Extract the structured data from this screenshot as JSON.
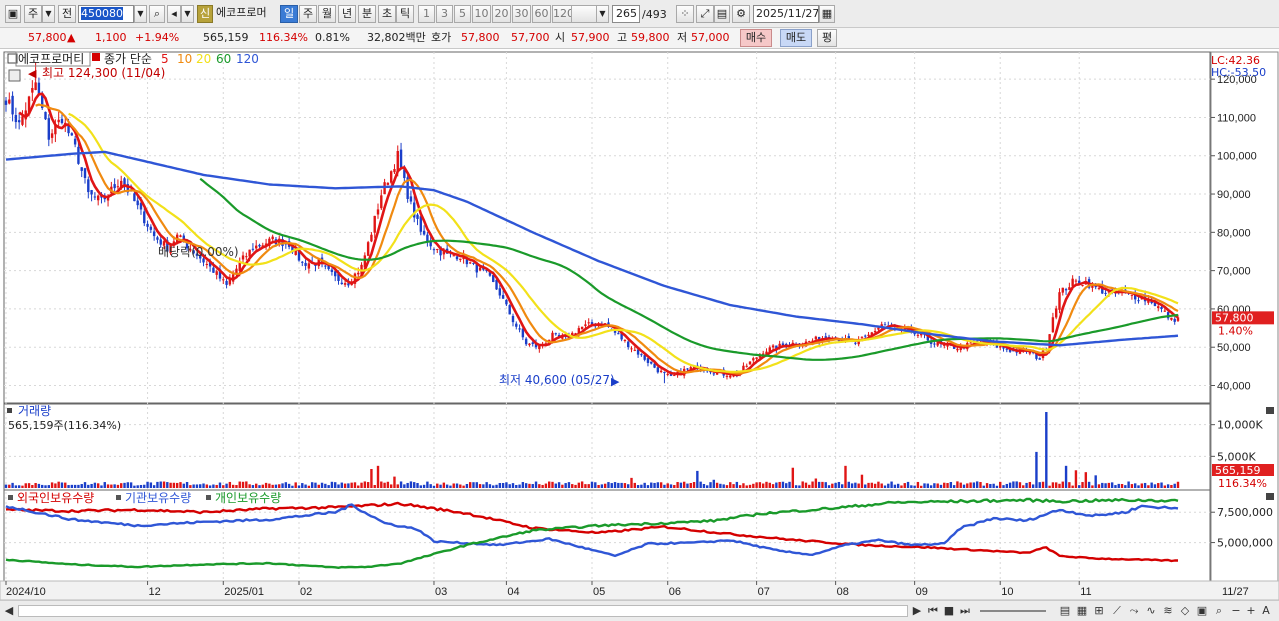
{
  "toolbar": {
    "period_main": "주",
    "jeon": "전",
    "code": "450080",
    "shin": "신",
    "stock_name": "에코프로머",
    "periods": [
      "일",
      "주",
      "월",
      "년",
      "분",
      "초",
      "틱"
    ],
    "active_period": "일",
    "intervals": [
      "1",
      "3",
      "5",
      "10",
      "20",
      "30",
      "60",
      "120"
    ],
    "count_value": "265",
    "count_total": "/493",
    "date": "2025/11/27"
  },
  "quote": {
    "price": "57,800",
    "change_arrow": "▲",
    "change": "1,100",
    "change_pct": "+1.94%",
    "volume": "565,159",
    "volume_ratio": "116.34%",
    "turnover": "0.81%",
    "amount": "32,802백만",
    "bid_label": "호가",
    "bid": "57,800",
    "ask": "57,700",
    "open_label": "시",
    "open": "57,900",
    "high_label": "고",
    "high": "59,800",
    "low_label": "저",
    "low": "57,000",
    "buy_btn": "매수",
    "sell_btn": "매도",
    "eval_btn": "평"
  },
  "price_panel": {
    "name_label": "에코프로머티",
    "ma_label": "종가 단순",
    "ma_periods": [
      "5",
      "10",
      "20",
      "60",
      "120"
    ],
    "ma_colors": [
      "#e01515",
      "#f08a10",
      "#f2e11a",
      "#1a9a2a",
      "#2f56d6"
    ],
    "high_marker": "최고 124,300 (11/04)",
    "low_marker": "최저 40,600 (05/27)",
    "lc_label": "LC:42.36",
    "hc_label": "HC:-53.50",
    "price_tag": "57,800",
    "pct_tag": "1.40%",
    "overlay_text": "배당락(0.00%)",
    "y_ticks": [
      "120,000",
      "110,000",
      "100,000",
      "90,000",
      "80,000",
      "70,000",
      "60,000",
      "50,000",
      "40,000"
    ]
  },
  "volume_panel": {
    "title": "거래량",
    "value_text": "565,159주(116.34%)",
    "y_ticks": [
      "10,000K",
      "5,000K"
    ],
    "tag_value": "565,159",
    "tag_pct": "116.34%"
  },
  "holding_panel": {
    "labels": [
      "외국인보유수량",
      "기관보유수량",
      "개인보유수량"
    ],
    "label_colors": [
      "#d40000",
      "#2f56d6",
      "#1a9a2a"
    ],
    "y_ticks": [
      "7,500,000",
      "5,000,000"
    ]
  },
  "x_axis": {
    "labels": [
      "2024/10",
      "12",
      "2025/01",
      "02",
      "03",
      "04",
      "05",
      "06",
      "07",
      "08",
      "09",
      "10",
      "11"
    ],
    "last_date": "11/27"
  },
  "chart_data": {
    "type": "line",
    "x_start": "2024-10-02",
    "x_end": "2025-11-27",
    "price_ylim": [
      37000,
      125000
    ],
    "price_anchors": [
      [
        0,
        115000
      ],
      [
        4,
        108000
      ],
      [
        9,
        119000
      ],
      [
        13,
        105000
      ],
      [
        17,
        110000
      ],
      [
        21,
        102000
      ],
      [
        25,
        90000
      ],
      [
        29,
        88000
      ],
      [
        35,
        94000
      ],
      [
        41,
        85000
      ],
      [
        45,
        79000
      ],
      [
        49,
        76000
      ],
      [
        52,
        79000
      ],
      [
        57,
        75000
      ],
      [
        63,
        70000
      ],
      [
        67,
        66000
      ],
      [
        71,
        72000
      ],
      [
        75,
        76000
      ],
      [
        81,
        78000
      ],
      [
        86,
        77000
      ],
      [
        90,
        72000
      ],
      [
        95,
        72000
      ],
      [
        100,
        68000
      ],
      [
        104,
        67000
      ],
      [
        108,
        71000
      ],
      [
        111,
        80000
      ],
      [
        114,
        90000
      ],
      [
        117,
        96000
      ],
      [
        119,
        100000
      ],
      [
        121,
        93000
      ],
      [
        123,
        87000
      ],
      [
        126,
        80000
      ],
      [
        130,
        76000
      ],
      [
        134,
        74000
      ],
      [
        138,
        74000
      ],
      [
        142,
        71000
      ],
      [
        146,
        69000
      ],
      [
        150,
        64000
      ],
      [
        154,
        57000
      ],
      [
        158,
        51000
      ],
      [
        162,
        50000
      ],
      [
        166,
        53000
      ],
      [
        170,
        52000
      ],
      [
        174,
        55000
      ],
      [
        178,
        56000
      ],
      [
        182,
        56000
      ],
      [
        186,
        53000
      ],
      [
        190,
        50000
      ],
      [
        194,
        47000
      ],
      [
        198,
        44000
      ],
      [
        202,
        42000
      ],
      [
        206,
        44000
      ],
      [
        210,
        45000
      ],
      [
        214,
        44000
      ],
      [
        218,
        43000
      ],
      [
        222,
        43000
      ],
      [
        226,
        46000
      ],
      [
        230,
        49000
      ],
      [
        234,
        50000
      ],
      [
        238,
        51000
      ],
      [
        242,
        51000
      ],
      [
        246,
        52000
      ],
      [
        250,
        53000
      ],
      [
        254,
        52000
      ],
      [
        258,
        51000
      ],
      [
        262,
        53000
      ],
      [
        266,
        56000
      ],
      [
        270,
        55000
      ],
      [
        274,
        54000
      ],
      [
        278,
        53000
      ],
      [
        282,
        51000
      ],
      [
        286,
        50000
      ],
      [
        290,
        50000
      ],
      [
        294,
        51000
      ],
      [
        298,
        51000
      ],
      [
        302,
        50000
      ],
      [
        306,
        49000
      ],
      [
        310,
        49000
      ],
      [
        314,
        47000
      ],
      [
        316,
        50000
      ],
      [
        318,
        58000
      ],
      [
        320,
        64000
      ],
      [
        324,
        67000
      ],
      [
        328,
        67000
      ],
      [
        332,
        65000
      ],
      [
        336,
        64000
      ],
      [
        340,
        64000
      ],
      [
        344,
        63000
      ],
      [
        348,
        62000
      ],
      [
        352,
        59000
      ],
      [
        354,
        57000
      ],
      [
        356,
        57800
      ]
    ],
    "ma120_anchors": [
      [
        0,
        99000
      ],
      [
        20,
        100500
      ],
      [
        30,
        101000
      ],
      [
        40,
        99000
      ],
      [
        60,
        95000
      ],
      [
        80,
        92500
      ],
      [
        100,
        91500
      ],
      [
        120,
        92000
      ],
      [
        130,
        91000
      ],
      [
        140,
        88000
      ],
      [
        160,
        80000
      ],
      [
        180,
        72500
      ],
      [
        200,
        66000
      ],
      [
        220,
        61000
      ],
      [
        240,
        58000
      ],
      [
        260,
        56000
      ],
      [
        280,
        53500
      ],
      [
        300,
        51500
      ],
      [
        320,
        50500
      ],
      [
        340,
        52000
      ],
      [
        356,
        53000
      ]
    ],
    "holdings_ylim": [
      2000000,
      9000000
    ],
    "foreign_anchors": [
      [
        0,
        7700000
      ],
      [
        20,
        7600000
      ],
      [
        40,
        7700000
      ],
      [
        60,
        7500000
      ],
      [
        80,
        7800000
      ],
      [
        100,
        7900000
      ],
      [
        120,
        8200000
      ],
      [
        140,
        7400000
      ],
      [
        160,
        6200000
      ],
      [
        180,
        5800000
      ],
      [
        200,
        6300000
      ],
      [
        220,
        5700000
      ],
      [
        240,
        5200000
      ],
      [
        260,
        4800000
      ],
      [
        280,
        4600000
      ],
      [
        300,
        4300000
      ],
      [
        310,
        4150000
      ],
      [
        316,
        4600000
      ],
      [
        320,
        3900000
      ],
      [
        330,
        3700000
      ],
      [
        356,
        3500000
      ]
    ],
    "inst_anchors": [
      [
        0,
        8000000
      ],
      [
        20,
        6900000
      ],
      [
        40,
        6400000
      ],
      [
        60,
        6700000
      ],
      [
        80,
        6900000
      ],
      [
        100,
        7500000
      ],
      [
        105,
        8100000
      ],
      [
        115,
        6600000
      ],
      [
        125,
        6100000
      ],
      [
        130,
        5100000
      ],
      [
        150,
        4800000
      ],
      [
        165,
        5300000
      ],
      [
        175,
        4600000
      ],
      [
        185,
        3900000
      ],
      [
        195,
        4900000
      ],
      [
        210,
        5000000
      ],
      [
        220,
        5200000
      ],
      [
        235,
        4300000
      ],
      [
        245,
        4000000
      ],
      [
        255,
        4800000
      ],
      [
        265,
        5200000
      ],
      [
        275,
        4800000
      ],
      [
        285,
        4900000
      ],
      [
        290,
        6200000
      ],
      [
        300,
        7000000
      ],
      [
        310,
        6800000
      ],
      [
        320,
        7700000
      ],
      [
        330,
        7200000
      ],
      [
        340,
        7500000
      ],
      [
        345,
        8000000
      ],
      [
        356,
        7800000
      ]
    ],
    "retail_anchors": [
      [
        0,
        3600000
      ],
      [
        20,
        3200000
      ],
      [
        40,
        3000000
      ],
      [
        60,
        3200000
      ],
      [
        80,
        3300000
      ],
      [
        100,
        2950000
      ],
      [
        110,
        3000000
      ],
      [
        120,
        3300000
      ],
      [
        140,
        4800000
      ],
      [
        160,
        6000000
      ],
      [
        180,
        6400000
      ],
      [
        200,
        6600000
      ],
      [
        215,
        6800000
      ],
      [
        230,
        7400000
      ],
      [
        250,
        7800000
      ],
      [
        270,
        8300000
      ],
      [
        290,
        8400000
      ],
      [
        310,
        8500000
      ],
      [
        320,
        8400000
      ],
      [
        340,
        8500000
      ],
      [
        356,
        8450000
      ]
    ],
    "volume_spikes": [
      [
        111,
        3000000
      ],
      [
        113,
        3500000
      ],
      [
        118,
        1800000
      ],
      [
        190,
        1600000
      ],
      [
        210,
        2700000
      ],
      [
        215,
        1300000
      ],
      [
        239,
        3200000
      ],
      [
        246,
        1500000
      ],
      [
        255,
        3500000
      ],
      [
        260,
        2100000
      ],
      [
        313,
        5700000
      ],
      [
        316,
        12000000
      ],
      [
        322,
        3500000
      ],
      [
        325,
        2800000
      ],
      [
        328,
        2500000
      ],
      [
        331,
        2000000
      ]
    ]
  }
}
